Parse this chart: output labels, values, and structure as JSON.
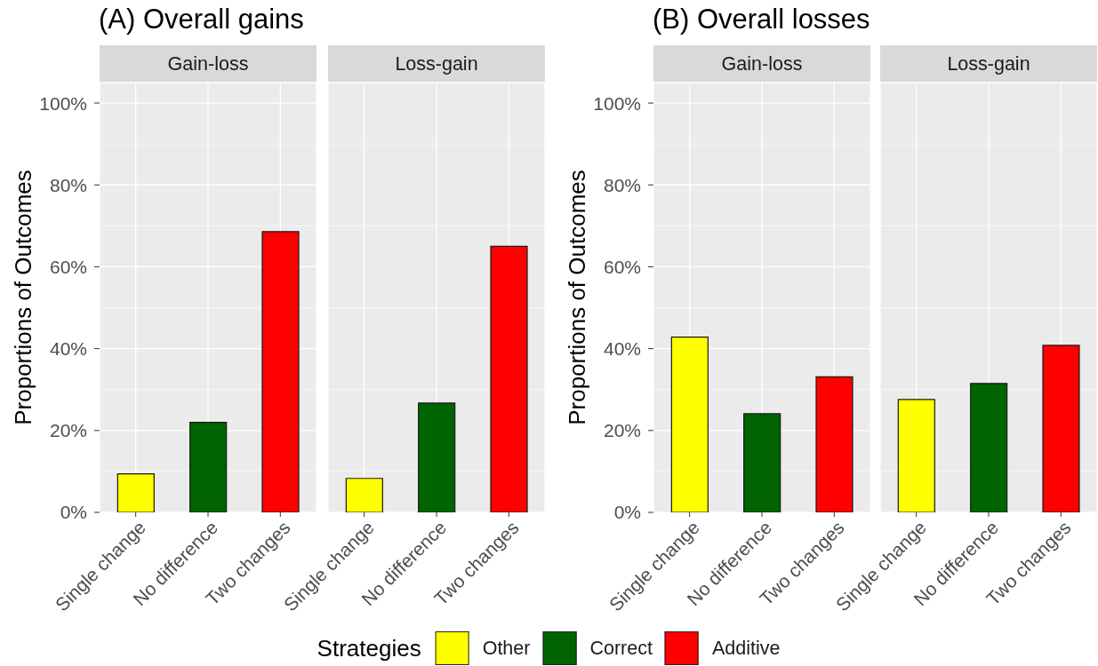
{
  "chart_data": [
    {
      "type": "bar",
      "title": "(A) Overall gains",
      "subtitle": "Gain-loss",
      "ylabel": "Proportions of Outcomes",
      "legend_title": "Strategies",
      "legend": "bottom",
      "categories": [
        "Single change",
        "No difference",
        "Two changes"
      ],
      "series": [
        {
          "name": "Other",
          "color": "#ffff00",
          "values": [
            9.4,
            null,
            null
          ]
        },
        {
          "name": "Correct",
          "color": "#006400",
          "values": [
            null,
            22.0,
            null
          ]
        },
        {
          "name": "Additive",
          "color": "#ff0000",
          "values": [
            null,
            null,
            68.6
          ]
        }
      ],
      "stacked": true,
      "ylim": [
        0,
        105
      ],
      "yticks": [
        {
          "value": 0,
          "label": "0%"
        },
        {
          "value": 20,
          "label": "20%"
        },
        {
          "value": 40,
          "label": "40%"
        },
        {
          "value": 60,
          "label": "60%"
        },
        {
          "value": 80,
          "label": "80%"
        },
        {
          "value": 100,
          "label": "100%"
        }
      ],
      "grid": true
    },
    {
      "type": "bar",
      "subtitle": "Loss-gain",
      "categories": [
        "Single change",
        "No difference",
        "Two changes"
      ],
      "series": [
        {
          "color": "#ffff00",
          "values": [
            8.3,
            null,
            null
          ]
        },
        {
          "color": "#006400",
          "values": [
            null,
            26.7,
            null
          ]
        },
        {
          "color": "#ff0000",
          "values": [
            null,
            null,
            65.0
          ]
        }
      ],
      "stacked": true,
      "ylim": [
        0,
        105
      ],
      "yticks": [
        0,
        20,
        40,
        60,
        80,
        100
      ],
      "grid": true,
      "tick_labels": "x"
    },
    {
      "type": "bar",
      "title": "(B) Overall losses",
      "subtitle": "Gain-loss",
      "ylabel": "Proportions of Outcomes",
      "categories": [
        "Single change",
        "No difference",
        "Two changes"
      ],
      "series": [
        {
          "color": "#ffff00",
          "values": [
            42.8,
            null,
            null
          ]
        },
        {
          "color": "#006400",
          "values": [
            null,
            24.1,
            null
          ]
        },
        {
          "color": "#ff0000",
          "values": [
            null,
            null,
            33.1
          ]
        }
      ],
      "stacked": true,
      "ylim": [
        0,
        105
      ],
      "yticks": [
        {
          "value": 0,
          "label": "0%"
        },
        {
          "value": 20,
          "label": "20%"
        },
        {
          "value": 40,
          "label": "40%"
        },
        {
          "value": 60,
          "label": "60%"
        },
        {
          "value": 80,
          "label": "80%"
        },
        {
          "value": 100,
          "label": "100%"
        }
      ],
      "grid": true
    },
    {
      "type": "bar",
      "subtitle": "Loss-gain",
      "categories": [
        "Single change",
        "No difference",
        "Two changes"
      ],
      "series": [
        {
          "color": "#ffff00",
          "values": [
            27.6,
            null,
            null
          ]
        },
        {
          "color": "#006400",
          "values": [
            null,
            31.5,
            null
          ]
        },
        {
          "color": "#ff0000",
          "values": [
            null,
            null,
            40.8
          ]
        }
      ],
      "stacked": true,
      "ylim": [
        0,
        105
      ],
      "yticks": [
        0,
        20,
        40,
        60,
        80,
        100
      ],
      "grid": true,
      "tick_labels": "x"
    }
  ]
}
